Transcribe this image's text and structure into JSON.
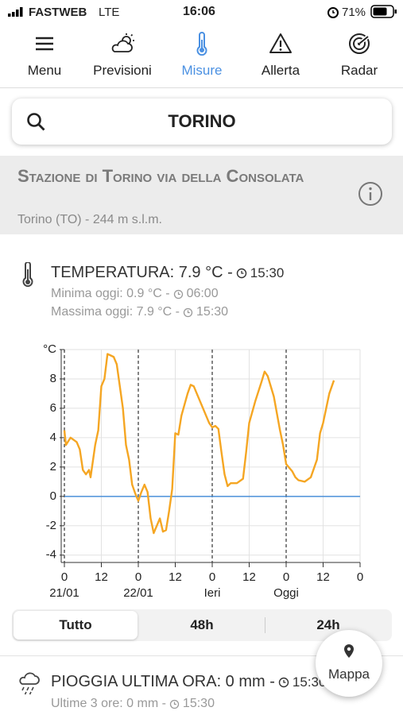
{
  "status_bar": {
    "carrier": "FASTWEB",
    "network": "LTE",
    "time": "16:06",
    "battery": "71%"
  },
  "nav": {
    "items": [
      "Menu",
      "Previsioni",
      "Misure",
      "Allerta",
      "Radar"
    ],
    "active": 2
  },
  "search": {
    "query": "TORINO"
  },
  "station": {
    "title": "Stazione di Torino via della Consolata",
    "subtitle": "Torino (TO) - 244 m s.l.m."
  },
  "temperature": {
    "label": "TEMPERATURA: 7.9 °C -",
    "time": "15:30",
    "min_label": "Minima oggi: 0.9 °C -",
    "min_time": "06:00",
    "max_label": "Massima oggi: 7.9 °C -",
    "max_time": "15:30"
  },
  "chart_data": {
    "type": "line",
    "color": "#f5a623",
    "x": [
      0,
      0.5,
      2,
      4,
      5,
      6,
      7,
      8,
      8.5,
      10,
      11,
      12,
      13,
      14,
      15,
      16,
      17,
      18,
      19,
      20,
      21,
      22,
      23,
      24,
      25,
      26,
      27,
      28,
      29,
      30,
      31,
      32,
      33,
      34,
      35,
      36,
      37,
      38,
      40,
      41,
      42,
      44,
      46,
      47,
      48,
      49,
      50,
      51,
      52,
      53,
      54,
      56,
      58,
      59,
      60,
      62,
      64,
      65,
      66,
      68,
      70,
      71,
      72,
      74,
      75,
      76,
      78,
      80,
      82,
      83,
      84,
      86,
      87.5
    ],
    "values": [
      4.5,
      3.5,
      4.0,
      3.7,
      3.2,
      1.8,
      1.5,
      1.8,
      1.3,
      3.5,
      4.5,
      7.5,
      8.0,
      9.7,
      9.6,
      9.5,
      9.0,
      7.5,
      6.0,
      3.5,
      2.5,
      0.8,
      0.2,
      -0.3,
      0.3,
      0.8,
      0.3,
      -1.5,
      -2.5,
      -2.0,
      -1.5,
      -2.4,
      -2.3,
      -1.0,
      0.5,
      4.3,
      4.2,
      5.5,
      7.0,
      7.6,
      7.5,
      6.5,
      5.5,
      5.0,
      4.7,
      4.8,
      4.6,
      3.0,
      1.5,
      0.7,
      0.9,
      0.9,
      1.2,
      3.0,
      5.0,
      6.5,
      7.8,
      8.5,
      8.2,
      6.8,
      4.5,
      3.5,
      2.2,
      1.7,
      1.3,
      1.1,
      1.0,
      1.3,
      2.5,
      4.3,
      5.0,
      7.0,
      7.9
    ],
    "xlim": [
      0,
      96
    ],
    "xticks": [
      0,
      12,
      {
        "value": 24,
        "label": "0"
      },
      {
        "value": 36,
        "label": "12"
      },
      {
        "value": 48,
        "label": "0"
      },
      {
        "value": 60,
        "label": "12"
      },
      {
        "value": 72,
        "label": "0"
      },
      {
        "value": 84,
        "label": "12"
      },
      {
        "value": 96,
        "label": "0"
      }
    ],
    "day_labels": [
      {
        "value": 0,
        "label": "21/01"
      },
      {
        "value": 24,
        "label": "22/01"
      },
      {
        "value": 48,
        "label": "Ieri"
      },
      {
        "value": 72,
        "label": "Oggi"
      }
    ],
    "ylim": [
      -4.5,
      10
    ],
    "yticks": [
      -4,
      -2,
      0,
      2,
      4,
      6,
      8,
      {
        "value": 10,
        "label": "°C"
      }
    ],
    "reference_line": {
      "value": 0,
      "color": "#4a90d9"
    },
    "grid": true
  },
  "range_tabs": {
    "items": [
      "Tutto",
      "48h",
      "24h"
    ],
    "active": 0
  },
  "map_button": "Mappa",
  "rain": {
    "label": "PIOGGIA ULTIMA ORA: 0 mm -",
    "time": "15:30",
    "sub_label": "Ultime 3 ore: 0 mm -",
    "sub_time": "15:30"
  }
}
